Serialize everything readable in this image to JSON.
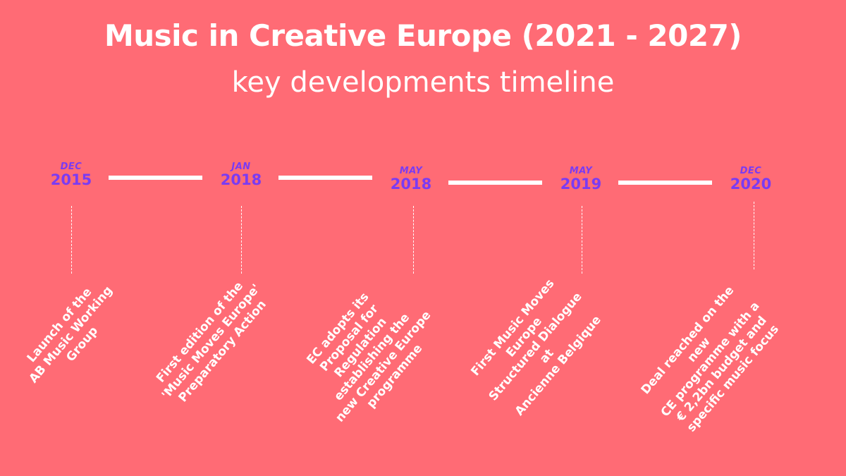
{
  "title": "Music in Creative Europe (2021 - 2027)",
  "subtitle": "key developments timeline",
  "colors": {
    "background": "#FF6B75",
    "accent": "#7B3BF2",
    "text": "#FFFFFF"
  },
  "events": [
    {
      "month": "DEC",
      "year": "2015",
      "text": "Launch of the\nAB Music Working\nGroup"
    },
    {
      "month": "JAN",
      "year": "2018",
      "text": "First edition of the\n'Music Moves Europe'\nPreparatory Action"
    },
    {
      "month": "MAY",
      "year": "2018",
      "text": "EC adopts its Proposal for\nRegulation establishing the\nnew Creative Europe\nprogramme"
    },
    {
      "month": "MAY",
      "year": "2019",
      "text": "First Music Moves Europe\nStructured Dialogue at\nAncienne Belgique"
    },
    {
      "month": "DEC",
      "year": "2020",
      "text": "Deal reached on the new\nCE programme with a\n€ 2,2bn budget and\nspecific music focus"
    }
  ]
}
